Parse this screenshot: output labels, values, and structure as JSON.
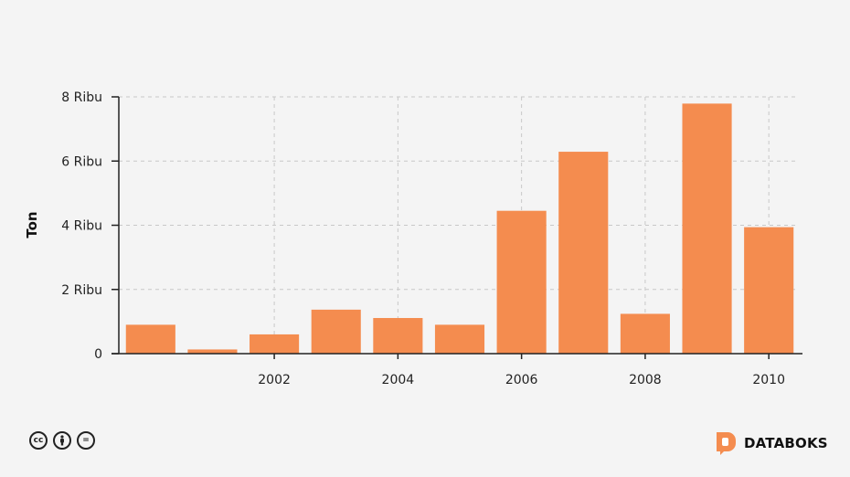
{
  "chart_data": {
    "type": "bar",
    "x": [
      2000,
      2001,
      2002,
      2003,
      2004,
      2005,
      2006,
      2007,
      2008,
      2009,
      2010
    ],
    "values": [
      900,
      130,
      600,
      1370,
      1110,
      900,
      4450,
      6290,
      1240,
      7790,
      3940
    ],
    "ylabel": "Ton",
    "ylim": [
      0,
      8000
    ],
    "yticks": [
      0,
      2000,
      4000,
      6000,
      8000
    ],
    "ytick_labels": [
      "0",
      "2 Ribu",
      "4 Ribu",
      "6 Ribu",
      "8 Ribu"
    ],
    "xticks": [
      2002,
      2004,
      2006,
      2008,
      2010
    ],
    "xtick_labels": [
      "2002",
      "2004",
      "2006",
      "2008",
      "2010"
    ],
    "bar_color": "#f48c4f",
    "grid": true
  },
  "footer": {
    "license_icons": [
      "creative-commons-icon",
      "attribution-icon",
      "no-derivatives-icon"
    ],
    "license_glyphs": [
      "cc",
      "",
      "="
    ],
    "brand_name": "DATABOKS",
    "brand_color": "#f48c4f"
  }
}
